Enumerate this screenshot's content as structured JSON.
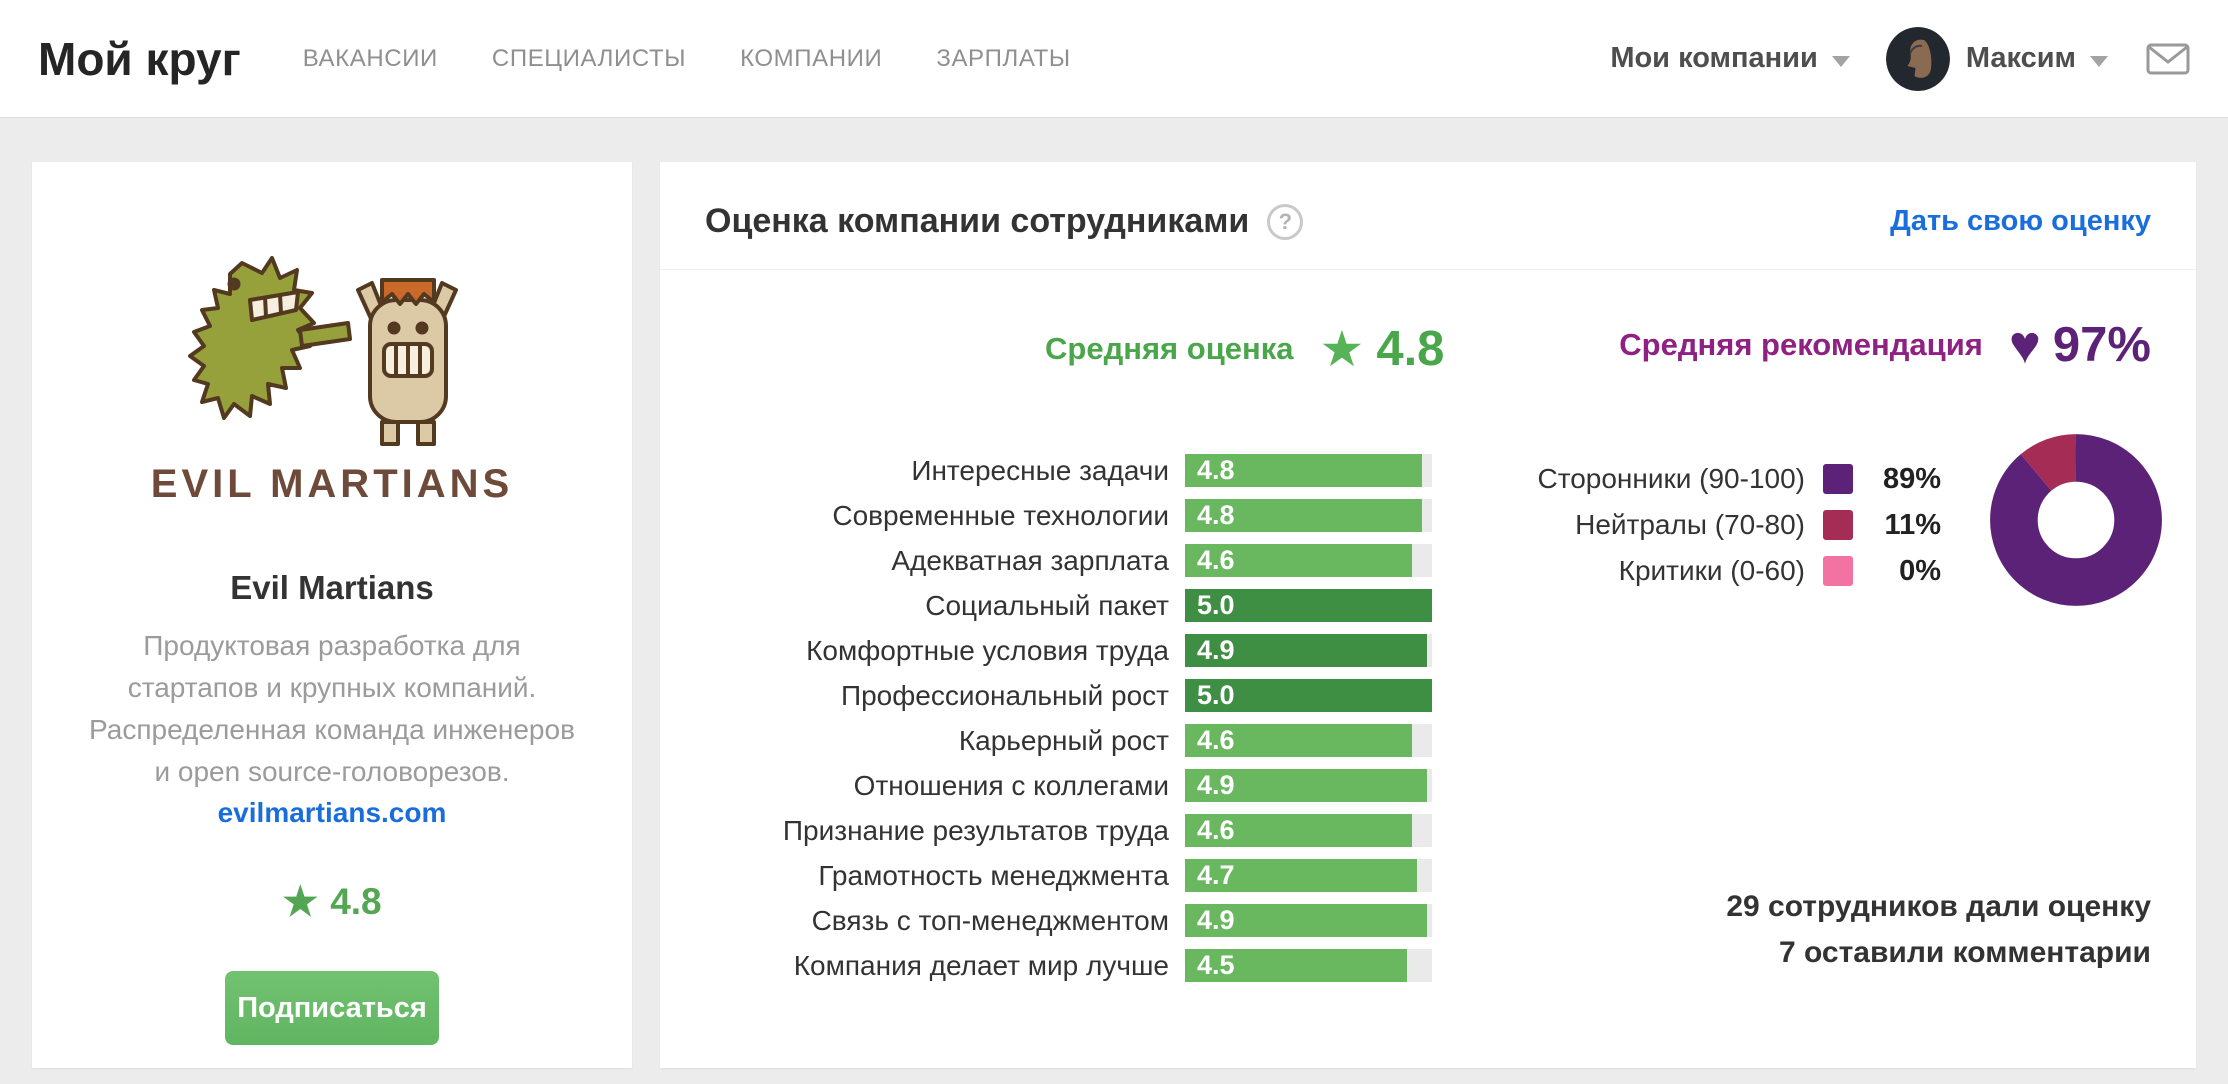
{
  "header": {
    "logo": "Мой круг",
    "nav": [
      {
        "id": "vacancies",
        "label": "ВАКАНСИИ"
      },
      {
        "id": "specialists",
        "label": "СПЕЦИАЛИСТЫ"
      },
      {
        "id": "companies",
        "label": "КОМПАНИИ"
      },
      {
        "id": "salaries",
        "label": "ЗАРПЛАТЫ"
      }
    ],
    "my_companies_label": "Мои компании",
    "user_name": "Максим"
  },
  "company_card": {
    "logo_caption": "EVIL MARTIANS",
    "name": "Evil Martians",
    "description": "Продуктовая разработка для стартапов и крупных компаний. Распределенная команда инженеров и open source-головорезов.",
    "website": "evilmartians.com",
    "rating_star": "★",
    "rating": "4.8",
    "subscribe_button": "Подписаться"
  },
  "panel": {
    "title": "Оценка компании сотрудниками",
    "help_icon": "?",
    "give_rating_link": "Дать свою оценку",
    "avg_rating_label": "Средняя оценка",
    "avg_rating_icon": "★",
    "avg_rating_value": "4.8",
    "avg_recommendation_label": "Средняя рекомендация",
    "avg_recommendation_icon": "♥",
    "avg_recommendation_value": "97%",
    "footer_line1": "29 сотрудников дали оценку",
    "footer_line2": "7 оставили комментарии"
  },
  "chart_data": [
    {
      "type": "bar",
      "orientation": "horizontal",
      "title": "Оценка компании сотрудниками",
      "categories": [
        "Интересные задачи",
        "Современные технологии",
        "Адекватная зарплата",
        "Социальный пакет",
        "Комфортные условия труда",
        "Профессиональный рост",
        "Карьерный рост",
        "Отношения с коллегами",
        "Признание результатов труда",
        "Грамотность менеджмента",
        "Связь с топ-менеджментом",
        "Компания делает мир лучше"
      ],
      "values": [
        4.8,
        4.8,
        4.6,
        5.0,
        4.9,
        5.0,
        4.6,
        4.9,
        4.6,
        4.7,
        4.9,
        4.5
      ],
      "xlim": [
        0,
        5
      ],
      "bar_color": "#69b75f",
      "bar_color_dark": "#3e8e44",
      "dark_indices": [
        3,
        4,
        5
      ],
      "grid": false
    },
    {
      "type": "pie",
      "donut": true,
      "title": "Средняя рекомендация",
      "total_display": "97%",
      "slices": [
        {
          "label": "Сторонники (90-100)",
          "value": 89,
          "display": "89%",
          "color": "#5c2277"
        },
        {
          "label": "Нейтралы (70-80)",
          "value": 11,
          "display": "11%",
          "color": "#a52c55"
        },
        {
          "label": "Критики (0-60)",
          "value": 0,
          "display": "0%",
          "color": "#f273a2"
        }
      ],
      "legend_position": "left-of-chart"
    }
  ],
  "colors": {
    "accent_green": "#4aa64a",
    "accent_purple_label": "#8e2181",
    "accent_purple_dark": "#5c2277",
    "link_blue": "#1a6edb",
    "bar_track": "#eaeaea",
    "button_green": "#67ba67"
  }
}
